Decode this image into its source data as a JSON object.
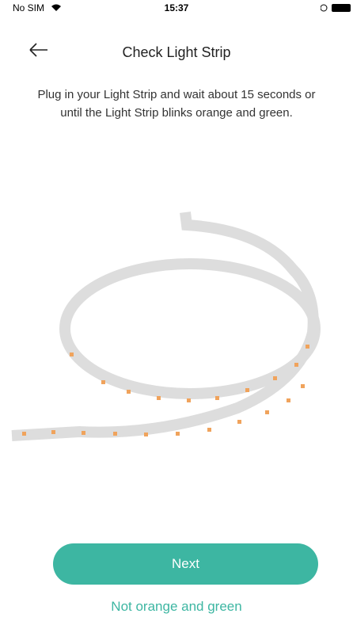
{
  "status_bar": {
    "carrier": "No SIM",
    "time": "15:37"
  },
  "header": {
    "title": "Check Light Strip"
  },
  "body": {
    "instructions": "Plug in your Light Strip and wait about 15 seconds or until the Light Strip blinks orange and green."
  },
  "actions": {
    "next": "Next",
    "alternative": "Not orange and green"
  }
}
